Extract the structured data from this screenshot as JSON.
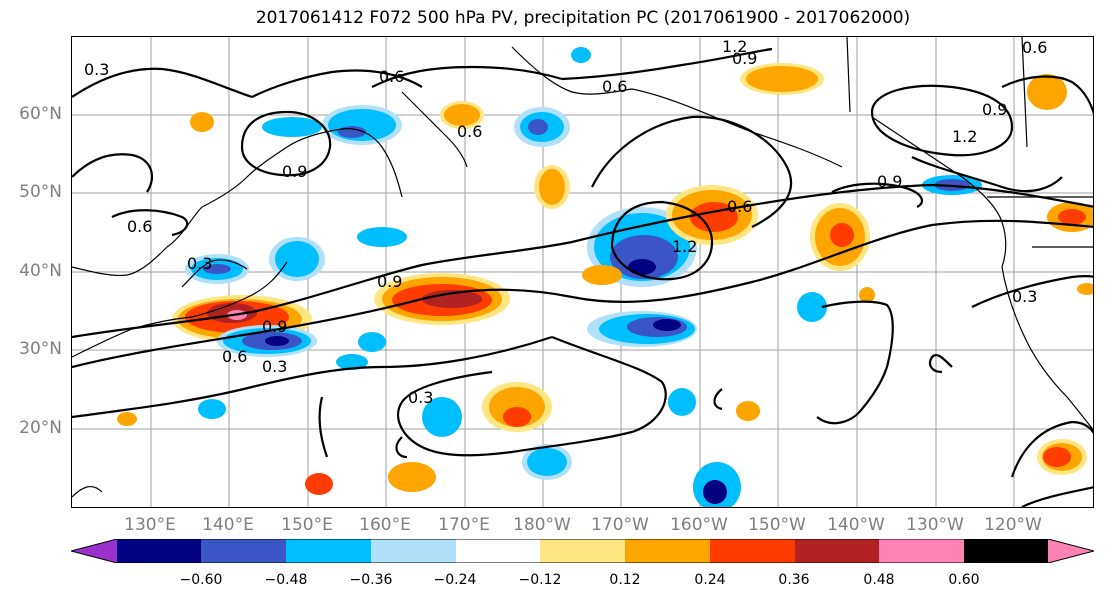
{
  "title": "2017061412 F072 500 hPa PV, precipitation PC (2017061900 - 2017062000)",
  "lat_labels": [
    "60°N",
    "50°N",
    "40°N",
    "30°N",
    "20°N"
  ],
  "lon_labels": [
    "130°E",
    "140°E",
    "150°E",
    "160°E",
    "170°E",
    "180°W",
    "170°W",
    "160°W",
    "150°W",
    "140°W",
    "130°W",
    "120°W"
  ],
  "colorbar": {
    "tick_labels": [
      "−0.60",
      "−0.48",
      "−0.36",
      "−0.24",
      "−0.12",
      "0.12",
      "0.24",
      "0.36",
      "0.48",
      "0.60"
    ],
    "colors": [
      "#9932cc",
      "#000080",
      "#3a56c6",
      "#00bfff",
      "#b0e0fa",
      "#ffffff",
      "#ffe680",
      "#ffa500",
      "#ff3c00",
      "#b22222",
      "#ff82b4"
    ]
  },
  "contour_labels": [
    "0.3",
    "0.6",
    "0.9",
    "1.2"
  ],
  "colors": {
    "pos_light": "#ffe680",
    "pos_mid": "#ffa500",
    "pos_strong": "#ff3c00",
    "pos_max": "#b22222",
    "pos_extreme": "#ff82b4",
    "neg_light": "#b0e0fa",
    "neg_mid": "#00bfff",
    "neg_strong": "#3a56c6",
    "neg_max": "#000080",
    "contour": "#000000",
    "coast": "#000000",
    "grid": "#a0a0a0"
  }
}
